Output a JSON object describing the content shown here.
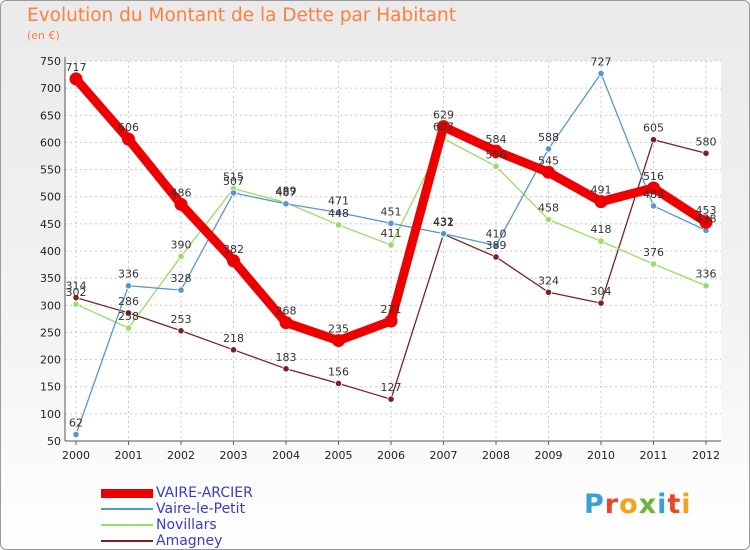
{
  "title": "Evolution du Montant de la Dette par Habitant",
  "subtitle": "(en €)",
  "logo": {
    "text": "Proxiti",
    "colors": [
      "#3aa0d8",
      "#e8462b",
      "#f2a31b",
      "#6cb33f",
      "#3aa0d8",
      "#e8462b",
      "#f2a31b"
    ]
  },
  "chart_data": {
    "type": "line",
    "title": "Evolution du Montant de la Dette par Habitant",
    "subtitle": "(en €)",
    "x": [
      "2000",
      "2001",
      "2002",
      "2003",
      "2004",
      "2005",
      "2006",
      "2007",
      "2008",
      "2009",
      "2010",
      "2011",
      "2012"
    ],
    "yticks": [
      "50",
      "100",
      "150",
      "200",
      "250",
      "300",
      "350",
      "400",
      "450",
      "500",
      "550",
      "600",
      "650",
      "700",
      "750"
    ],
    "ylim": [
      50,
      750
    ],
    "grid": true,
    "legend_position": "bottom-left",
    "series": [
      {
        "name": "VAIRE-ARCIER",
        "color": "#ee0000",
        "values": [
          717,
          606,
          486,
          382,
          268,
          235,
          271,
          629,
          584,
          545,
          491,
          516,
          453
        ],
        "labels": [
          "717",
          "606",
          "486",
          "382",
          "268",
          "235",
          "271",
          "629",
          "584",
          "545",
          "491",
          "516",
          "453"
        ]
      },
      {
        "name": "Vaire-le-Petit",
        "color": "#5599cc",
        "values": [
          62,
          336,
          328,
          507,
          487,
          471,
          451,
          432,
          410,
          588,
          727,
          483,
          438
        ],
        "labels": [
          "62",
          "336",
          "328",
          "507",
          "487",
          "471",
          "451",
          "432",
          "410",
          "588",
          "727",
          "483",
          "438"
        ]
      },
      {
        "name": "Novillars",
        "color": "#99dd66",
        "values": [
          302,
          258,
          390,
          515,
          489,
          448,
          411,
          607,
          556,
          458,
          418,
          376,
          336
        ],
        "labels": [
          "302",
          "258",
          "390",
          "515",
          "489",
          "448",
          "411",
          "607",
          "556",
          "458",
          "418",
          "376",
          "336"
        ]
      },
      {
        "name": "Amagney",
        "color": "#7a2222",
        "values": [
          314,
          286,
          253,
          218,
          183,
          156,
          127,
          431,
          389,
          324,
          304,
          605,
          580
        ],
        "labels": [
          "314",
          "286",
          "253",
          "218",
          "183",
          "156",
          "127",
          "431",
          "389",
          "324",
          "304",
          "605",
          "580"
        ]
      }
    ]
  }
}
